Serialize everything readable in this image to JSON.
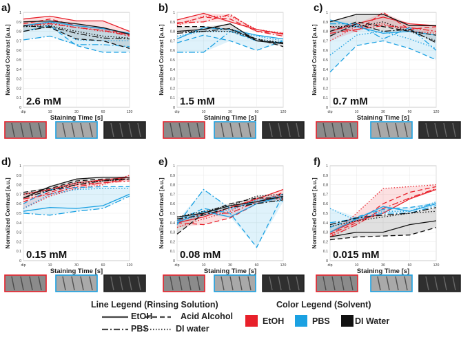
{
  "figure": {
    "xlabel": "Staining Time [s]",
    "ylabel": "Normalized Contrast [a.u.]",
    "colors": {
      "EtOH": "#e8202a",
      "PBS": "#1ba1e2",
      "DI Water": "#111111"
    },
    "line_legend_title": "Line Legend (Rinsing Solution)",
    "color_legend_title": "Color Legend (Solvent)",
    "line_legend": [
      {
        "label": "EtOH",
        "dash": "solid"
      },
      {
        "label": "Acid Alcohol",
        "dash": "dashed"
      },
      {
        "label": "PBS",
        "dash": "dashdot"
      },
      {
        "label": "DI water",
        "dash": "dotted"
      }
    ],
    "color_legend": [
      {
        "label": "EtOH",
        "color": "#e8202a"
      },
      {
        "label": "PBS",
        "color": "#1ba1e2"
      },
      {
        "label": "DI Water",
        "color": "#111111"
      }
    ]
  },
  "chart_data": [
    {
      "panel": "a)",
      "concentration": "2.6 mM",
      "type": "line",
      "categories": [
        "dip",
        "10",
        "30",
        "60",
        "120"
      ],
      "ylim": [
        0,
        1
      ],
      "yticks": [
        "0",
        "0.1",
        "0.2",
        "0.3",
        "0.4",
        "0.5",
        "0.6",
        "0.7",
        "0.8",
        "0.9",
        "1"
      ],
      "series": [
        {
          "solvent": "EtOH",
          "rinse": "EtOH",
          "values": [
            0.93,
            0.96,
            0.91,
            0.91,
            0.8
          ]
        },
        {
          "solvent": "EtOH",
          "rinse": "Acid Alcohol",
          "values": [
            0.88,
            0.93,
            0.86,
            0.83,
            0.76
          ]
        },
        {
          "solvent": "EtOH",
          "rinse": "PBS",
          "values": [
            0.86,
            0.88,
            0.84,
            0.81,
            0.75
          ]
        },
        {
          "solvent": "EtOH",
          "rinse": "DI water",
          "values": [
            0.85,
            0.89,
            0.84,
            0.8,
            0.77
          ]
        },
        {
          "solvent": "PBS",
          "rinse": "EtOH",
          "values": [
            0.86,
            0.9,
            0.86,
            0.83,
            0.78
          ]
        },
        {
          "solvent": "PBS",
          "rinse": "Acid Alcohol",
          "values": [
            0.8,
            0.86,
            0.65,
            0.58,
            0.58
          ]
        },
        {
          "solvent": "PBS",
          "rinse": "PBS",
          "values": [
            0.71,
            0.75,
            0.66,
            0.66,
            0.64
          ]
        },
        {
          "solvent": "PBS",
          "rinse": "DI water",
          "values": [
            0.85,
            0.86,
            0.71,
            0.7,
            0.7
          ]
        },
        {
          "solvent": "DI Water",
          "rinse": "EtOH",
          "values": [
            0.9,
            0.91,
            0.88,
            0.84,
            0.77
          ]
        },
        {
          "solvent": "DI Water",
          "rinse": "Acid Alcohol",
          "values": [
            0.86,
            0.84,
            0.72,
            0.7,
            0.62
          ]
        },
        {
          "solvent": "DI Water",
          "rinse": "PBS",
          "values": [
            0.8,
            0.85,
            0.78,
            0.73,
            0.72
          ]
        },
        {
          "solvent": "DI Water",
          "rinse": "DI water",
          "values": [
            0.85,
            0.86,
            0.8,
            0.75,
            0.73
          ]
        }
      ]
    },
    {
      "panel": "b)",
      "concentration": "1.5 mM",
      "type": "line",
      "categories": [
        "dip",
        "10",
        "30",
        "60",
        "120"
      ],
      "ylim": [
        0,
        1
      ],
      "yticks": [
        "0",
        "0.1",
        "0.2",
        "0.3",
        "0.4",
        "0.5",
        "0.6",
        "0.7",
        "0.8",
        "0.9",
        "1"
      ],
      "series": [
        {
          "solvent": "EtOH",
          "rinse": "EtOH",
          "values": [
            0.92,
            0.99,
            0.9,
            0.82,
            0.77
          ]
        },
        {
          "solvent": "EtOH",
          "rinse": "Acid Alcohol",
          "values": [
            0.88,
            0.95,
            0.93,
            0.8,
            0.78
          ]
        },
        {
          "solvent": "EtOH",
          "rinse": "PBS",
          "values": [
            0.89,
            0.9,
            0.98,
            0.8,
            0.75
          ]
        },
        {
          "solvent": "EtOH",
          "rinse": "DI water",
          "values": [
            0.86,
            0.96,
            0.96,
            0.82,
            0.78
          ]
        },
        {
          "solvent": "PBS",
          "rinse": "EtOH",
          "values": [
            0.72,
            0.84,
            0.82,
            0.76,
            0.72
          ]
        },
        {
          "solvent": "PBS",
          "rinse": "Acid Alcohol",
          "values": [
            0.68,
            0.76,
            0.7,
            0.6,
            0.7
          ]
        },
        {
          "solvent": "PBS",
          "rinse": "PBS",
          "values": [
            0.58,
            0.58,
            0.8,
            0.7,
            0.68
          ]
        },
        {
          "solvent": "PBS",
          "rinse": "DI water",
          "values": [
            0.75,
            0.8,
            0.8,
            0.75,
            0.7
          ]
        },
        {
          "solvent": "DI Water",
          "rinse": "EtOH",
          "values": [
            0.8,
            0.82,
            0.88,
            0.7,
            0.67
          ]
        },
        {
          "solvent": "DI Water",
          "rinse": "Acid Alcohol",
          "values": [
            0.85,
            0.85,
            0.82,
            0.72,
            0.64
          ]
        },
        {
          "solvent": "DI Water",
          "rinse": "PBS",
          "values": [
            0.78,
            0.8,
            0.83,
            0.7,
            0.68
          ]
        },
        {
          "solvent": "DI Water",
          "rinse": "DI water",
          "values": [
            0.8,
            0.8,
            0.8,
            0.72,
            0.68
          ]
        }
      ]
    },
    {
      "panel": "c)",
      "concentration": "0.7 mM",
      "type": "line",
      "categories": [
        "dip",
        "10",
        "30",
        "60",
        "120"
      ],
      "ylim": [
        0,
        1
      ],
      "yticks": [
        "0",
        "0.1",
        "0.2",
        "0.3",
        "0.4",
        "0.5",
        "0.6",
        "0.7",
        "0.8",
        "0.9",
        "1"
      ],
      "series": [
        {
          "solvent": "EtOH",
          "rinse": "EtOH",
          "values": [
            0.8,
            0.88,
            0.95,
            0.88,
            0.86
          ]
        },
        {
          "solvent": "EtOH",
          "rinse": "Acid Alcohol",
          "values": [
            0.85,
            0.8,
            1.0,
            0.82,
            0.85
          ]
        },
        {
          "solvent": "EtOH",
          "rinse": "PBS",
          "values": [
            0.78,
            0.82,
            0.86,
            0.84,
            0.8
          ]
        },
        {
          "solvent": "EtOH",
          "rinse": "DI water",
          "values": [
            0.7,
            0.85,
            0.88,
            0.8,
            0.78
          ]
        },
        {
          "solvent": "PBS",
          "rinse": "EtOH",
          "values": [
            0.92,
            0.85,
            0.78,
            0.8,
            0.76
          ]
        },
        {
          "solvent": "PBS",
          "rinse": "Acid Alcohol",
          "values": [
            0.37,
            0.65,
            0.7,
            0.62,
            0.5
          ]
        },
        {
          "solvent": "PBS",
          "rinse": "PBS",
          "values": [
            0.88,
            0.88,
            0.72,
            0.84,
            0.6
          ]
        },
        {
          "solvent": "PBS",
          "rinse": "DI water",
          "values": [
            0.55,
            0.76,
            0.8,
            0.72,
            0.62
          ]
        },
        {
          "solvent": "DI Water",
          "rinse": "EtOH",
          "values": [
            0.9,
            0.98,
            0.98,
            0.86,
            0.86
          ]
        },
        {
          "solvent": "DI Water",
          "rinse": "Acid Alcohol",
          "values": [
            0.8,
            0.9,
            0.85,
            0.8,
            0.76
          ]
        },
        {
          "solvent": "DI Water",
          "rinse": "PBS",
          "values": [
            0.75,
            0.88,
            0.8,
            0.82,
            0.68
          ]
        },
        {
          "solvent": "DI Water",
          "rinse": "DI water",
          "values": [
            0.85,
            0.85,
            0.9,
            0.8,
            0.7
          ]
        }
      ]
    },
    {
      "panel": "d)",
      "concentration": "0.15 mM",
      "type": "line",
      "categories": [
        "dip",
        "10",
        "30",
        "60",
        "120"
      ],
      "ylim": [
        0,
        1
      ],
      "yticks": [
        "0",
        "0.1",
        "0.2",
        "0.3",
        "0.4",
        "0.5",
        "0.6",
        "0.7",
        "0.8",
        "0.9",
        "1"
      ],
      "series": [
        {
          "solvent": "EtOH",
          "rinse": "EtOH",
          "values": [
            0.7,
            0.75,
            0.82,
            0.85,
            0.88
          ]
        },
        {
          "solvent": "EtOH",
          "rinse": "Acid Alcohol",
          "values": [
            0.62,
            0.72,
            0.8,
            0.82,
            0.86
          ]
        },
        {
          "solvent": "EtOH",
          "rinse": "PBS",
          "values": [
            0.65,
            0.7,
            0.78,
            0.82,
            0.84
          ]
        },
        {
          "solvent": "EtOH",
          "rinse": "DI water",
          "values": [
            0.55,
            0.68,
            0.76,
            0.8,
            0.9
          ]
        },
        {
          "solvent": "PBS",
          "rinse": "EtOH",
          "values": [
            0.52,
            0.56,
            0.55,
            0.58,
            0.7
          ]
        },
        {
          "solvent": "PBS",
          "rinse": "Acid Alcohol",
          "values": [
            0.6,
            0.75,
            0.77,
            0.78,
            0.78
          ]
        },
        {
          "solvent": "PBS",
          "rinse": "PBS",
          "values": [
            0.5,
            0.48,
            0.52,
            0.55,
            0.68
          ]
        },
        {
          "solvent": "PBS",
          "rinse": "DI water",
          "values": [
            0.55,
            0.7,
            0.75,
            0.76,
            0.76
          ]
        },
        {
          "solvent": "DI Water",
          "rinse": "EtOH",
          "values": [
            0.66,
            0.78,
            0.86,
            0.88,
            0.88
          ]
        },
        {
          "solvent": "DI Water",
          "rinse": "Acid Alcohol",
          "values": [
            0.72,
            0.76,
            0.84,
            0.86,
            0.86
          ]
        },
        {
          "solvent": "DI Water",
          "rinse": "PBS",
          "values": [
            0.66,
            0.74,
            0.8,
            0.84,
            0.86
          ]
        },
        {
          "solvent": "DI Water",
          "rinse": "DI water",
          "values": [
            0.7,
            0.74,
            0.82,
            0.84,
            0.86
          ]
        }
      ]
    },
    {
      "panel": "e)",
      "concentration": "0.08 mM",
      "type": "line",
      "categories": [
        "dip",
        "10",
        "30",
        "60",
        "120"
      ],
      "ylim": [
        0,
        1
      ],
      "yticks": [
        "0",
        "0.1",
        "0.2",
        "0.3",
        "0.4",
        "0.5",
        "0.6",
        "0.7",
        "0.8",
        "0.9",
        "1"
      ],
      "series": [
        {
          "solvent": "EtOH",
          "rinse": "EtOH",
          "values": [
            0.4,
            0.46,
            0.56,
            0.65,
            0.75
          ]
        },
        {
          "solvent": "EtOH",
          "rinse": "Acid Alcohol",
          "values": [
            0.4,
            0.38,
            0.45,
            0.6,
            0.72
          ]
        },
        {
          "solvent": "EtOH",
          "rinse": "PBS",
          "values": [
            0.42,
            0.5,
            0.5,
            0.62,
            0.7
          ]
        },
        {
          "solvent": "EtOH",
          "rinse": "DI water",
          "values": [
            0.35,
            0.44,
            0.52,
            0.66,
            0.65
          ]
        },
        {
          "solvent": "PBS",
          "rinse": "EtOH",
          "values": [
            0.4,
            0.52,
            0.46,
            0.6,
            0.68
          ]
        },
        {
          "solvent": "PBS",
          "rinse": "Acid Alcohol",
          "values": [
            0.42,
            0.55,
            0.5,
            0.14,
            0.7
          ]
        },
        {
          "solvent": "PBS",
          "rinse": "PBS",
          "values": [
            0.38,
            0.75,
            0.55,
            0.62,
            0.7
          ]
        },
        {
          "solvent": "PBS",
          "rinse": "DI water",
          "values": [
            0.42,
            0.48,
            0.54,
            0.64,
            0.62
          ]
        },
        {
          "solvent": "DI Water",
          "rinse": "EtOH",
          "values": [
            0.46,
            0.5,
            0.58,
            0.62,
            0.68
          ]
        },
        {
          "solvent": "DI Water",
          "rinse": "Acid Alcohol",
          "values": [
            0.28,
            0.5,
            0.6,
            0.66,
            0.66
          ]
        },
        {
          "solvent": "DI Water",
          "rinse": "PBS",
          "values": [
            0.44,
            0.48,
            0.56,
            0.6,
            0.64
          ]
        },
        {
          "solvent": "DI Water",
          "rinse": "DI water",
          "values": [
            0.46,
            0.52,
            0.58,
            0.68,
            0.7
          ]
        }
      ]
    },
    {
      "panel": "f)",
      "concentration": "0.015 mM",
      "type": "line",
      "categories": [
        "dip",
        "10",
        "30",
        "60",
        "120"
      ],
      "ylim": [
        0,
        1
      ],
      "yticks": [
        "0",
        "0.1",
        "0.2",
        "0.3",
        "0.4",
        "0.5",
        "0.6",
        "0.7",
        "0.8",
        "0.9",
        "1"
      ],
      "series": [
        {
          "solvent": "EtOH",
          "rinse": "EtOH",
          "values": [
            0.3,
            0.42,
            0.5,
            0.65,
            0.75
          ]
        },
        {
          "solvent": "EtOH",
          "rinse": "Acid Alcohol",
          "values": [
            0.28,
            0.4,
            0.6,
            0.72,
            0.78
          ]
        },
        {
          "solvent": "EtOH",
          "rinse": "PBS",
          "values": [
            0.25,
            0.38,
            0.55,
            0.66,
            0.76
          ]
        },
        {
          "solvent": "EtOH",
          "rinse": "DI water",
          "values": [
            0.25,
            0.5,
            0.76,
            0.78,
            0.8
          ]
        },
        {
          "solvent": "PBS",
          "rinse": "EtOH",
          "values": [
            0.3,
            0.44,
            0.57,
            0.52,
            0.6
          ]
        },
        {
          "solvent": "PBS",
          "rinse": "Acid Alcohol",
          "values": [
            0.35,
            0.46,
            0.54,
            0.56,
            0.6
          ]
        },
        {
          "solvent": "PBS",
          "rinse": "PBS",
          "values": [
            0.4,
            0.44,
            0.5,
            0.5,
            0.58
          ]
        },
        {
          "solvent": "PBS",
          "rinse": "DI water",
          "values": [
            0.55,
            0.42,
            0.52,
            0.52,
            0.62
          ]
        },
        {
          "solvent": "DI Water",
          "rinse": "EtOH",
          "values": [
            0.25,
            0.3,
            0.3,
            0.38,
            0.42
          ]
        },
        {
          "solvent": "DI Water",
          "rinse": "Acid Alcohol",
          "values": [
            0.22,
            0.25,
            0.26,
            0.27,
            0.35
          ]
        },
        {
          "solvent": "DI Water",
          "rinse": "PBS",
          "values": [
            0.38,
            0.45,
            0.48,
            0.5,
            0.56
          ]
        },
        {
          "solvent": "DI Water",
          "rinse": "DI water",
          "values": [
            0.36,
            0.42,
            0.46,
            0.5,
            0.52
          ]
        }
      ]
    }
  ]
}
